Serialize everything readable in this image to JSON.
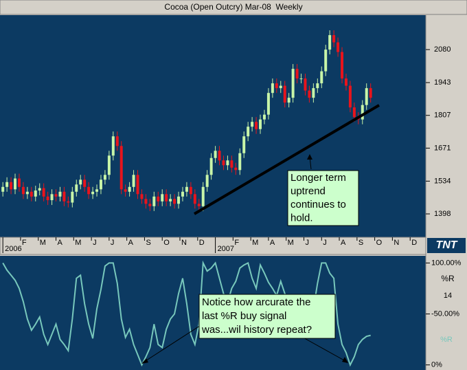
{
  "chart_data": [
    {
      "type": "candlestick",
      "title": "Cocoa (Open Outcry) Mar-08  Weekly",
      "open": [
        1490,
        1510,
        1530,
        1500,
        1545,
        1510,
        1480,
        1490,
        1470,
        1495,
        1505,
        1470,
        1455,
        1480,
        1470,
        1490,
        1450,
        1445,
        1490,
        1520,
        1540,
        1510,
        1480,
        1490,
        1500,
        1540,
        1560,
        1640,
        1720,
        1680,
        1500,
        1490,
        1510,
        1560,
        1480,
        1460,
        1440,
        1430,
        1470,
        1450,
        1480,
        1450,
        1460,
        1440,
        1470,
        1490,
        1510,
        1480,
        1440,
        1430,
        1510,
        1560,
        1630,
        1660,
        1620,
        1600,
        1620,
        1590,
        1580,
        1650,
        1720,
        1760,
        1780,
        1750,
        1790,
        1810,
        1900,
        1940,
        1920,
        1930,
        1860,
        1880,
        2000,
        1960,
        1960,
        1910,
        1880,
        1920,
        1940,
        1990,
        2080,
        2140,
        2110,
        2070,
        1960,
        1930,
        1840,
        1800,
        1790,
        1850,
        1920
      ],
      "high": [
        1530,
        1550,
        1550,
        1565,
        1565,
        1530,
        1510,
        1510,
        1515,
        1525,
        1525,
        1490,
        1500,
        1500,
        1510,
        1510,
        1470,
        1510,
        1540,
        1560,
        1560,
        1530,
        1510,
        1520,
        1560,
        1580,
        1660,
        1740,
        1740,
        1700,
        1520,
        1530,
        1580,
        1580,
        1500,
        1480,
        1460,
        1490,
        1490,
        1500,
        1500,
        1480,
        1480,
        1490,
        1510,
        1530,
        1530,
        1500,
        1460,
        1530,
        1580,
        1650,
        1680,
        1680,
        1640,
        1640,
        1640,
        1610,
        1670,
        1740,
        1780,
        1800,
        1800,
        1810,
        1830,
        1920,
        1960,
        1960,
        1950,
        1950,
        1900,
        2020,
        2020,
        1980,
        1980,
        1930,
        1940,
        1960,
        2010,
        2100,
        2160,
        2160,
        2130,
        2090,
        1980,
        1950,
        1860,
        1820,
        1870,
        1940,
        1940
      ],
      "low": [
        1470,
        1490,
        1480,
        1480,
        1490,
        1460,
        1460,
        1450,
        1450,
        1475,
        1450,
        1435,
        1435,
        1450,
        1450,
        1430,
        1425,
        1425,
        1470,
        1500,
        1490,
        1460,
        1460,
        1470,
        1480,
        1520,
        1540,
        1620,
        1660,
        1480,
        1470,
        1470,
        1490,
        1460,
        1440,
        1420,
        1410,
        1410,
        1430,
        1430,
        1430,
        1430,
        1420,
        1420,
        1450,
        1470,
        1460,
        1420,
        1410,
        1410,
        1490,
        1540,
        1610,
        1600,
        1580,
        1580,
        1570,
        1560,
        1560,
        1630,
        1700,
        1740,
        1730,
        1730,
        1770,
        1790,
        1880,
        1900,
        1900,
        1840,
        1840,
        1860,
        1940,
        1940,
        1890,
        1860,
        1860,
        1900,
        1920,
        1970,
        2060,
        2090,
        2050,
        1940,
        1910,
        1820,
        1780,
        1770,
        1770,
        1830,
        1860
      ],
      "close": [
        1510,
        1530,
        1500,
        1545,
        1510,
        1480,
        1490,
        1470,
        1495,
        1505,
        1470,
        1455,
        1480,
        1470,
        1490,
        1450,
        1445,
        1490,
        1520,
        1540,
        1510,
        1480,
        1490,
        1500,
        1540,
        1560,
        1640,
        1720,
        1680,
        1500,
        1490,
        1510,
        1560,
        1480,
        1460,
        1440,
        1430,
        1470,
        1450,
        1480,
        1450,
        1460,
        1440,
        1470,
        1490,
        1510,
        1480,
        1440,
        1430,
        1510,
        1560,
        1630,
        1660,
        1620,
        1600,
        1620,
        1590,
        1580,
        1650,
        1720,
        1760,
        1780,
        1750,
        1790,
        1810,
        1900,
        1940,
        1920,
        1930,
        1860,
        1880,
        2000,
        1960,
        1960,
        1910,
        1880,
        1920,
        1940,
        1990,
        2080,
        2140,
        2110,
        2070,
        1960,
        1930,
        1840,
        1800,
        1790,
        1850,
        1920,
        1880
      ],
      "up_color": "#c8f5a8",
      "down_color": "#e8141c",
      "ylim": [
        1301,
        2223
      ],
      "yticks": [
        1398,
        1534,
        1671,
        1807,
        1943,
        2080
      ],
      "xlim": [
        -0.7,
        103.5
      ],
      "xticks": [
        {
          "value": 4.33,
          "label": "F"
        },
        {
          "value": 8.67,
          "label": "M"
        },
        {
          "value": 13,
          "label": "A"
        },
        {
          "value": 17.33,
          "label": "M"
        },
        {
          "value": 21.67,
          "label": "J"
        },
        {
          "value": 26,
          "label": "J"
        },
        {
          "value": 30.33,
          "label": "A"
        },
        {
          "value": 34.67,
          "label": "S"
        },
        {
          "value": 39,
          "label": "O"
        },
        {
          "value": 43.33,
          "label": "N"
        },
        {
          "value": 47.67,
          "label": "D"
        },
        {
          "value": 56.33,
          "label": "F"
        },
        {
          "value": 60.67,
          "label": "M"
        },
        {
          "value": 65,
          "label": "A"
        },
        {
          "value": 69.33,
          "label": "M"
        },
        {
          "value": 73.67,
          "label": "J"
        },
        {
          "value": 78,
          "label": "J"
        },
        {
          "value": 82.33,
          "label": "A"
        },
        {
          "value": 86.67,
          "label": "S"
        },
        {
          "value": 91,
          "label": "O"
        },
        {
          "value": 95.33,
          "label": "N"
        },
        {
          "value": 99.67,
          "label": "D"
        }
      ],
      "year_ticks": [
        {
          "value": 0,
          "label": "2006"
        },
        {
          "value": 52,
          "label": "2007"
        }
      ],
      "annotation": [
        "Longer term",
        "uptrend",
        "continues to",
        "hold."
      ]
    },
    {
      "type": "line",
      "series": [
        {
          "name": "%R",
          "color": "#78c8bc",
          "values": [
            100,
            93,
            88,
            83,
            75,
            62,
            45,
            34,
            40,
            47,
            30,
            20,
            30,
            40,
            25,
            20,
            14,
            45,
            85,
            88,
            60,
            40,
            26,
            55,
            74,
            97,
            100,
            100,
            80,
            45,
            27,
            35,
            20,
            10,
            0,
            8,
            17,
            40,
            20,
            17,
            35,
            45,
            50,
            70,
            85,
            60,
            30,
            20,
            40,
            100,
            92,
            95,
            100,
            85,
            70,
            61,
            75,
            82,
            95,
            98,
            100,
            85,
            75,
            98,
            90,
            81,
            75,
            68,
            82,
            70,
            60,
            65,
            55,
            40,
            34,
            30,
            55,
            80,
            100,
            100,
            90,
            85,
            40,
            20,
            12,
            0,
            8,
            20,
            25,
            28,
            29
          ]
        }
      ],
      "period": 14,
      "ylim": [
        -5,
        107
      ],
      "yticks": [
        {
          "value": 100,
          "label": "100.00%"
        },
        {
          "value": 50,
          "label": "-50.00%"
        },
        {
          "value": 0,
          "label": "0%"
        }
      ],
      "annotation": [
        "Notice how arcurate the",
        "last %R buy signal",
        "was...wil history repeat?"
      ]
    }
  ],
  "logo": "TNT"
}
